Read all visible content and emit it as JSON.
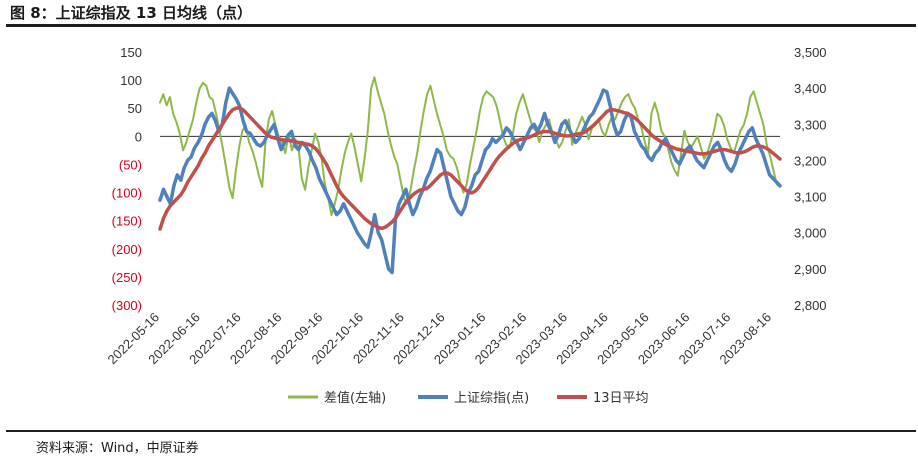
{
  "figure": {
    "title": "图 8：上证综指及 13 日均线（点）",
    "source": "资料来源：Wind，中原证券"
  },
  "chart_data": {
    "type": "line",
    "title": "上证综指及 13 日均线（点）",
    "x_tick_labels": [
      "2022-05-16",
      "2022-06-16",
      "2022-07-16",
      "2022-08-16",
      "2022-09-16",
      "2022-10-16",
      "2022-11-16",
      "2022-12-16",
      "2023-01-16",
      "2023-02-16",
      "2023-03-16",
      "2023-04-16",
      "2023-05-16",
      "2023-06-16",
      "2023-07-16",
      "2023-08-16"
    ],
    "y_left": {
      "label": "差值(左轴)",
      "range": [
        -300,
        150
      ],
      "ticks": [
        150,
        100,
        50,
        0,
        -50,
        -100,
        -150,
        -200,
        -250,
        -300
      ],
      "tick_labels": [
        "150",
        "100",
        "50",
        "0",
        "(50)",
        "(100)",
        "(150)",
        "(200)",
        "(250)",
        "(300)"
      ],
      "negative_color": "#d0021b"
    },
    "y_right": {
      "range": [
        2800,
        3500
      ],
      "ticks": [
        3500,
        3400,
        3300,
        3200,
        3100,
        3000,
        2900,
        2800
      ],
      "tick_labels": [
        "3,500",
        "3,400",
        "3,300",
        "3,200",
        "3,100",
        "3,000",
        "2,900",
        "2,800"
      ]
    },
    "series": [
      {
        "name": "差值(左轴)",
        "axis": "left",
        "color": "#8fb84a",
        "values": [
          60,
          75,
          55,
          70,
          40,
          25,
          5,
          -25,
          -10,
          10,
          30,
          60,
          85,
          95,
          90,
          70,
          65,
          40,
          10,
          -20,
          -55,
          -90,
          -110,
          -60,
          -20,
          10,
          20,
          -10,
          -25,
          -45,
          -70,
          -90,
          -10,
          30,
          45,
          20,
          0,
          -10,
          -30,
          5,
          -25,
          -5,
          -20,
          -75,
          -95,
          -55,
          -25,
          5,
          -10,
          -40,
          -85,
          -110,
          -140,
          -120,
          -95,
          -60,
          -30,
          -10,
          5,
          -20,
          -50,
          -80,
          -40,
          10,
          85,
          105,
          80,
          60,
          40,
          10,
          -15,
          -35,
          -50,
          -80,
          -110,
          -120,
          -95,
          -60,
          -30,
          10,
          45,
          75,
          90,
          65,
          40,
          20,
          0,
          -25,
          -35,
          -40,
          -55,
          -80,
          -100,
          -85,
          -50,
          -20,
          10,
          45,
          70,
          80,
          75,
          70,
          55,
          30,
          0,
          -15,
          -20,
          5,
          40,
          60,
          75,
          55,
          35,
          15,
          10,
          -10,
          10,
          20,
          30,
          5,
          -5,
          -20,
          -10,
          10,
          30,
          -15,
          5,
          20,
          35,
          20,
          -5,
          15,
          20,
          30,
          10,
          0,
          20,
          35,
          30,
          45,
          60,
          70,
          75,
          60,
          50,
          30,
          15,
          -10,
          -30,
          40,
          60,
          40,
          10,
          0,
          -20,
          -45,
          -60,
          -70,
          -30,
          10,
          -10,
          -20,
          -10,
          0,
          -20,
          -40,
          -30,
          -10,
          10,
          40,
          35,
          20,
          -5,
          -20,
          -30,
          -10,
          10,
          20,
          40,
          70,
          80,
          60,
          40,
          20,
          -15,
          -35,
          -60,
          -85,
          -90
        ]
      },
      {
        "name": "上证综指(点)",
        "axis": "right",
        "color": "#4f81bd",
        "values": [
          3090,
          3120,
          3100,
          3080,
          3130,
          3160,
          3145,
          3180,
          3200,
          3210,
          3235,
          3250,
          3270,
          3300,
          3320,
          3330,
          3310,
          3280,
          3300,
          3360,
          3400,
          3385,
          3370,
          3350,
          3310,
          3280,
          3275,
          3260,
          3245,
          3240,
          3250,
          3270,
          3285,
          3300,
          3260,
          3230,
          3250,
          3270,
          3280,
          3240,
          3230,
          3250,
          3240,
          3225,
          3200,
          3180,
          3150,
          3130,
          3110,
          3090,
          3070,
          3050,
          3060,
          3080,
          3060,
          3040,
          3020,
          3000,
          2985,
          2970,
          2960,
          3000,
          3050,
          3000,
          2980,
          2940,
          2900,
          2890,
          3040,
          3080,
          3100,
          3120,
          3080,
          3050,
          3070,
          3100,
          3120,
          3150,
          3170,
          3200,
          3230,
          3220,
          3180,
          3140,
          3100,
          3080,
          3060,
          3050,
          3070,
          3110,
          3130,
          3160,
          3170,
          3200,
          3230,
          3240,
          3260,
          3250,
          3260,
          3270,
          3290,
          3280,
          3260,
          3250,
          3230,
          3250,
          3270,
          3290,
          3300,
          3280,
          3300,
          3330,
          3300,
          3280,
          3250,
          3270,
          3300,
          3310,
          3290,
          3270,
          3250,
          3260,
          3280,
          3300,
          3320,
          3330,
          3350,
          3370,
          3395,
          3390,
          3350,
          3300,
          3270,
          3280,
          3310,
          3330,
          3320,
          3280,
          3260,
          3240,
          3230,
          3210,
          3200,
          3220,
          3230,
          3250,
          3260,
          3240,
          3220,
          3200,
          3190,
          3210,
          3230,
          3240,
          3220,
          3200,
          3190,
          3180,
          3200,
          3220,
          3240,
          3250,
          3230,
          3200,
          3180,
          3170,
          3190,
          3220,
          3240,
          3260,
          3280,
          3290,
          3260,
          3240,
          3220,
          3190,
          3160,
          3150,
          3140,
          3130
        ]
      },
      {
        "name": "13日平均",
        "axis": "right",
        "color": "#c0504d",
        "values": [
          3010,
          3040,
          3060,
          3075,
          3085,
          3095,
          3105,
          3120,
          3140,
          3155,
          3170,
          3185,
          3205,
          3220,
          3240,
          3255,
          3270,
          3285,
          3300,
          3315,
          3330,
          3340,
          3345,
          3345,
          3340,
          3330,
          3320,
          3310,
          3300,
          3290,
          3280,
          3270,
          3265,
          3262,
          3260,
          3258,
          3256,
          3255,
          3254,
          3252,
          3250,
          3248,
          3246,
          3244,
          3240,
          3232,
          3220,
          3205,
          3190,
          3170,
          3150,
          3130,
          3112,
          3100,
          3090,
          3080,
          3070,
          3060,
          3050,
          3040,
          3032,
          3025,
          3020,
          3015,
          3012,
          3015,
          3022,
          3030,
          3040,
          3055,
          3070,
          3085,
          3095,
          3105,
          3112,
          3118,
          3120,
          3122,
          3130,
          3140,
          3150,
          3160,
          3165,
          3165,
          3160,
          3150,
          3140,
          3130,
          3120,
          3113,
          3110,
          3115,
          3125,
          3140,
          3155,
          3170,
          3185,
          3200,
          3212,
          3222,
          3232,
          3240,
          3248,
          3254,
          3258,
          3260,
          3262,
          3266,
          3270,
          3275,
          3278,
          3280,
          3280,
          3278,
          3275,
          3272,
          3270,
          3268,
          3268,
          3270,
          3272,
          3274,
          3276,
          3280,
          3288,
          3296,
          3305,
          3315,
          3325,
          3335,
          3340,
          3340,
          3338,
          3335,
          3332,
          3330,
          3325,
          3318,
          3310,
          3300,
          3290,
          3280,
          3270,
          3262,
          3256,
          3250,
          3244,
          3240,
          3236,
          3232,
          3230,
          3228,
          3226,
          3224,
          3222,
          3220,
          3218,
          3218,
          3220,
          3222,
          3225,
          3228,
          3230,
          3230,
          3228,
          3225,
          3222,
          3220,
          3222,
          3225,
          3230,
          3236,
          3240,
          3240,
          3238,
          3234,
          3228,
          3220,
          3212,
          3204
        ]
      }
    ]
  },
  "legend": {
    "items": [
      "差值(左轴)",
      "上证综指(点)",
      "13日平均"
    ]
  }
}
